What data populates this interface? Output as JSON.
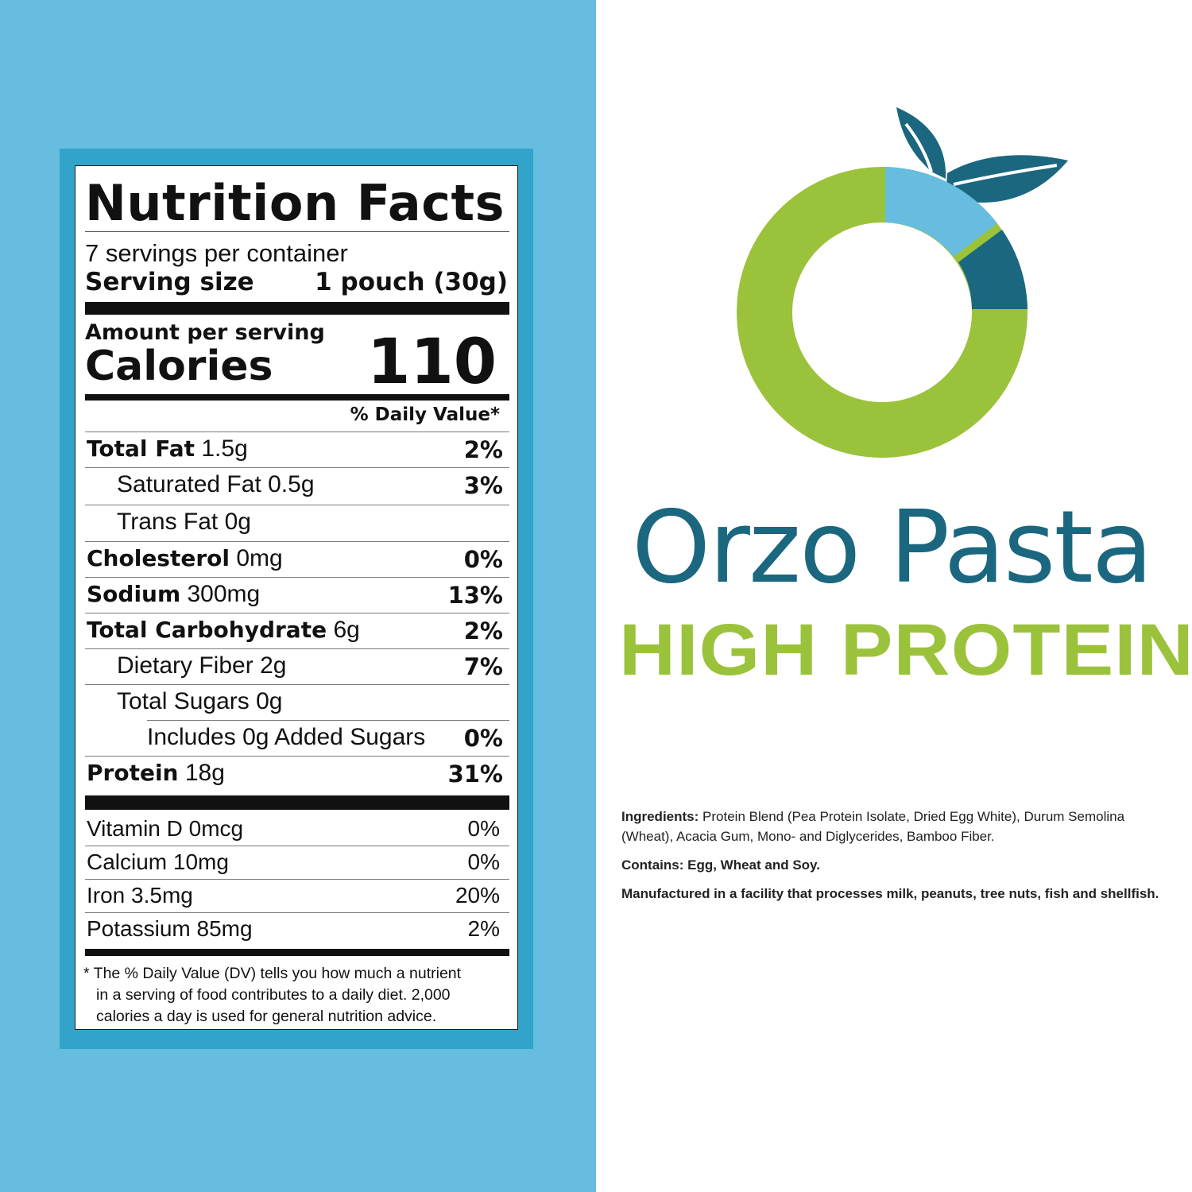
{
  "nutrition": {
    "title": "Nutrition Facts",
    "servings_per_container": "7 servings per container",
    "serving_size_label": "Serving size",
    "serving_size_value": "1 pouch (30g)",
    "amount_per_serving": "Amount per serving",
    "calories_label": "Calories",
    "calories_value": "110",
    "dv_header": "% Daily Value*",
    "rows": [
      {
        "name": "Total Fat",
        "amount": "1.5g",
        "dv": "2%"
      },
      {
        "name": "Saturated Fat",
        "amount": "0.5g",
        "dv": "3%"
      },
      {
        "name": "Trans Fat",
        "amount": "0g",
        "dv": ""
      },
      {
        "name": "Cholesterol",
        "amount": "0mg",
        "dv": "0%"
      },
      {
        "name": "Sodium",
        "amount": "300mg",
        "dv": "13%"
      },
      {
        "name": "Total Carbohydrate",
        "amount": "6g",
        "dv": "2%"
      },
      {
        "name": "Dietary Fiber",
        "amount": "2g",
        "dv": "7%"
      },
      {
        "name": "Total Sugars",
        "amount": "0g",
        "dv": ""
      },
      {
        "name": "Includes 0g Added Sugars",
        "amount": "",
        "dv": "0%"
      },
      {
        "name": "Protein",
        "amount": "18g",
        "dv": "31%"
      }
    ],
    "vitamins": [
      {
        "label": "Vitamin D 0mcg",
        "dv": "0%"
      },
      {
        "label": "Calcium 10mg",
        "dv": "0%"
      },
      {
        "label": "Iron 3.5mg",
        "dv": "20%"
      },
      {
        "label": "Potassium 85mg",
        "dv": "2%"
      }
    ],
    "footnote_line1": "* The % Daily Value (DV) tells you how much a nutrient",
    "footnote_line2": "in a serving of food contributes to a daily diet. 2,000",
    "footnote_line3": "calories a day is used for general nutrition advice."
  },
  "brand": {
    "name": "Orzo Pasta",
    "tagline": "HIGH PROTEIN",
    "logo_colors": {
      "ring": "#9bc23b",
      "light_segment": "#66bde0",
      "dark_segment": "#1a677f",
      "leaves": "#1a677f"
    }
  },
  "ingredients": {
    "label": "Ingredients:",
    "text": "Protein Blend (Pea Protein Isolate, Dried Egg White), Durum Semolina (Wheat), Acacia Gum, Mono- and Diglycerides, Bamboo Fiber.",
    "contains": "Contains: Egg, Wheat and Soy.",
    "facility": "Manufactured in a facility that processes milk, peanuts, tree nuts, fish and shellfish."
  },
  "colors": {
    "panel_blue": "#66bde0",
    "frame_blue": "#33a4c9",
    "brand_teal": "#1a677f",
    "brand_green": "#9bc23b"
  }
}
